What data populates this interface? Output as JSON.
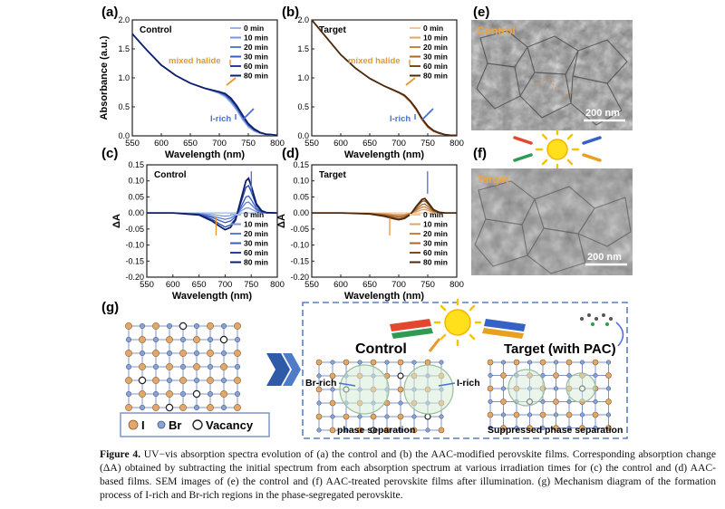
{
  "panel_letters": {
    "a": "(a)",
    "b": "(b)",
    "c": "(c)",
    "d": "(d)",
    "e": "(e)",
    "f": "(f)",
    "g": "(g)"
  },
  "colors": {
    "control_series": [
      "#9ab4e6",
      "#7b98dd",
      "#5b7ccf",
      "#3b5bc0",
      "#23409f",
      "#0d1f6e"
    ],
    "target_series": [
      "#f1c79b",
      "#e0a46b",
      "#c98445",
      "#a9682e",
      "#82491a",
      "#4d2a0d"
    ],
    "accent_orange": "#e8972b",
    "accent_blue": "#4a6fd8",
    "lattice_I": "#e2a76a",
    "lattice_Br": "#8aa3cf",
    "dashed_box": "#5d7fc0"
  },
  "chart_data": [
    {
      "id": "a",
      "type": "line",
      "inner_label": "Control",
      "xlabel": "Wavelength (nm)",
      "ylabel": "Absorbance (a.u.)",
      "xlim": [
        550,
        800
      ],
      "ylim": [
        0,
        2.0
      ],
      "xticks": [
        "550",
        "600",
        "650",
        "700",
        "750",
        "800"
      ],
      "yticks": [
        "0.0",
        "0.5",
        "1.0",
        "1.5",
        "2.0"
      ],
      "legend": [
        "0 min",
        "10 min",
        "20 min",
        "30 min",
        "60 min",
        "80 min"
      ],
      "annotations": {
        "mixed": "mixed halide",
        "irich": "I-rich"
      },
      "x": [
        550,
        575,
        600,
        625,
        650,
        675,
        700,
        710,
        720,
        730,
        740,
        750,
        760,
        770,
        780,
        790,
        800
      ],
      "series": [
        {
          "name": "0 min",
          "values": [
            1.76,
            1.48,
            1.22,
            1.04,
            0.91,
            0.82,
            0.73,
            0.67,
            0.57,
            0.44,
            0.28,
            0.15,
            0.08,
            0.04,
            0.02,
            0.01,
            0.01
          ]
        },
        {
          "name": "10 min",
          "values": [
            1.76,
            1.48,
            1.22,
            1.04,
            0.91,
            0.82,
            0.74,
            0.69,
            0.59,
            0.46,
            0.3,
            0.17,
            0.09,
            0.05,
            0.03,
            0.02,
            0.01
          ]
        },
        {
          "name": "20 min",
          "values": [
            1.76,
            1.48,
            1.22,
            1.04,
            0.91,
            0.82,
            0.75,
            0.7,
            0.61,
            0.48,
            0.32,
            0.18,
            0.1,
            0.05,
            0.03,
            0.02,
            0.01
          ]
        },
        {
          "name": "30 min",
          "values": [
            1.76,
            1.48,
            1.22,
            1.04,
            0.91,
            0.82,
            0.75,
            0.71,
            0.62,
            0.49,
            0.33,
            0.19,
            0.1,
            0.06,
            0.03,
            0.02,
            0.01
          ]
        },
        {
          "name": "60 min",
          "values": [
            1.76,
            1.48,
            1.22,
            1.04,
            0.91,
            0.82,
            0.76,
            0.72,
            0.64,
            0.51,
            0.35,
            0.2,
            0.11,
            0.06,
            0.03,
            0.02,
            0.01
          ]
        },
        {
          "name": "80 min",
          "values": [
            1.76,
            1.48,
            1.22,
            1.04,
            0.91,
            0.82,
            0.76,
            0.73,
            0.65,
            0.52,
            0.36,
            0.21,
            0.12,
            0.06,
            0.03,
            0.02,
            0.01
          ]
        }
      ]
    },
    {
      "id": "b",
      "type": "line",
      "inner_label": "Target",
      "xlabel": "Wavelength (nm)",
      "ylabel": "",
      "xlim": [
        550,
        800
      ],
      "ylim": [
        0,
        2.0
      ],
      "xticks": [
        "550",
        "600",
        "650",
        "700",
        "750",
        "800"
      ],
      "yticks": [
        "0.0",
        "0.5",
        "1.0",
        "1.5",
        "2.0"
      ],
      "legend": [
        "0 min",
        "10 min",
        "20 min",
        "30 min",
        "60 min",
        "80 min"
      ],
      "annotations": {
        "mixed": "mixed halide",
        "irich": "I-rich"
      },
      "x": [
        550,
        575,
        600,
        625,
        650,
        675,
        700,
        710,
        720,
        730,
        740,
        750,
        760,
        770,
        780,
        790,
        800
      ],
      "series": [
        {
          "name": "0 min",
          "values": [
            2.0,
            1.7,
            1.4,
            1.17,
            0.99,
            0.86,
            0.74,
            0.68,
            0.58,
            0.44,
            0.27,
            0.14,
            0.07,
            0.04,
            0.02,
            0.01,
            0.01
          ]
        },
        {
          "name": "10 min",
          "values": [
            2.0,
            1.7,
            1.4,
            1.17,
            0.99,
            0.86,
            0.74,
            0.68,
            0.58,
            0.45,
            0.28,
            0.15,
            0.08,
            0.04,
            0.02,
            0.01,
            0.01
          ]
        },
        {
          "name": "20 min",
          "values": [
            2.0,
            1.7,
            1.4,
            1.17,
            0.99,
            0.86,
            0.74,
            0.69,
            0.59,
            0.45,
            0.28,
            0.15,
            0.08,
            0.04,
            0.02,
            0.01,
            0.01
          ]
        },
        {
          "name": "30 min",
          "values": [
            2.0,
            1.7,
            1.4,
            1.17,
            0.99,
            0.86,
            0.75,
            0.69,
            0.59,
            0.46,
            0.29,
            0.16,
            0.08,
            0.04,
            0.02,
            0.01,
            0.01
          ]
        },
        {
          "name": "60 min",
          "values": [
            2.0,
            1.7,
            1.4,
            1.17,
            0.99,
            0.86,
            0.75,
            0.69,
            0.6,
            0.46,
            0.29,
            0.16,
            0.09,
            0.04,
            0.02,
            0.01,
            0.01
          ]
        },
        {
          "name": "80 min",
          "values": [
            2.0,
            1.7,
            1.4,
            1.17,
            0.99,
            0.86,
            0.75,
            0.7,
            0.6,
            0.47,
            0.3,
            0.17,
            0.09,
            0.05,
            0.02,
            0.01,
            0.01
          ]
        }
      ]
    },
    {
      "id": "c",
      "type": "line",
      "inner_label": "Control",
      "xlabel": "Wavelength (nm)",
      "ylabel": "ΔA",
      "xlim": [
        550,
        800
      ],
      "ylim": [
        -0.2,
        0.15
      ],
      "xticks": [
        "550",
        "600",
        "650",
        "700",
        "750",
        "800"
      ],
      "yticks": [
        "-0.20",
        "-0.15",
        "-0.10",
        "-0.05",
        "0.00",
        "0.05",
        "0.10",
        "0.15"
      ],
      "legend": [
        "0 min",
        "10 min",
        "20 min",
        "30 min",
        "60 min",
        "80 min"
      ],
      "x": [
        550,
        600,
        650,
        675,
        690,
        700,
        710,
        720,
        730,
        740,
        745,
        750,
        760,
        770,
        780,
        800
      ],
      "series": [
        {
          "name": "0 min",
          "values": [
            0,
            0,
            0,
            0,
            0,
            0,
            0,
            0,
            0,
            0,
            0,
            0,
            0,
            0,
            0,
            0
          ]
        },
        {
          "name": "10 min",
          "values": [
            0,
            0,
            -0.002,
            -0.005,
            -0.008,
            -0.01,
            -0.008,
            -0.004,
            0.006,
            0.015,
            0.016,
            0.012,
            0.004,
            0.001,
            0,
            0
          ]
        },
        {
          "name": "20 min",
          "values": [
            0,
            0,
            -0.003,
            -0.01,
            -0.016,
            -0.02,
            -0.016,
            -0.008,
            0.012,
            0.032,
            0.034,
            0.026,
            0.009,
            0.002,
            0,
            0
          ]
        },
        {
          "name": "30 min",
          "values": [
            0,
            0,
            -0.004,
            -0.014,
            -0.024,
            -0.03,
            -0.025,
            -0.012,
            0.018,
            0.05,
            0.053,
            0.042,
            0.014,
            0.003,
            0.001,
            0
          ]
        },
        {
          "name": "60 min",
          "values": [
            0,
            0,
            -0.005,
            -0.02,
            -0.035,
            -0.044,
            -0.037,
            -0.018,
            0.03,
            0.08,
            0.085,
            0.066,
            0.022,
            0.005,
            0.001,
            0
          ]
        },
        {
          "name": "80 min",
          "values": [
            0,
            0,
            -0.006,
            -0.025,
            -0.042,
            -0.052,
            -0.045,
            -0.022,
            0.04,
            0.1,
            0.108,
            0.084,
            0.028,
            0.007,
            0.001,
            0
          ]
        }
      ]
    },
    {
      "id": "d",
      "type": "line",
      "inner_label": "Target",
      "xlabel": "Wavelength (nm)",
      "ylabel": "ΔA",
      "xlim": [
        550,
        800
      ],
      "ylim": [
        -0.2,
        0.15
      ],
      "xticks": [
        "550",
        "600",
        "650",
        "700",
        "750",
        "800"
      ],
      "yticks": [
        "-0.20",
        "-0.15",
        "-0.10",
        "-0.05",
        "0.00",
        "0.05",
        "0.10",
        "0.15"
      ],
      "legend": [
        "0 min",
        "10 min",
        "20 min",
        "30 min",
        "60 min",
        "80 min"
      ],
      "x": [
        550,
        600,
        650,
        675,
        690,
        700,
        710,
        720,
        730,
        740,
        745,
        750,
        760,
        770,
        780,
        800
      ],
      "series": [
        {
          "name": "0 min",
          "values": [
            0,
            0,
            0,
            0,
            0,
            0,
            0,
            0,
            0,
            0,
            0,
            0,
            0,
            0,
            0,
            0
          ]
        },
        {
          "name": "10 min",
          "values": [
            0,
            0,
            -0.001,
            -0.002,
            -0.004,
            -0.005,
            -0.004,
            -0.001,
            0.004,
            0.01,
            0.011,
            0.008,
            0.002,
            0,
            0,
            0
          ]
        },
        {
          "name": "20 min",
          "values": [
            0,
            0,
            -0.001,
            -0.004,
            -0.007,
            -0.009,
            -0.007,
            -0.002,
            0.008,
            0.018,
            0.019,
            0.014,
            0.004,
            0.001,
            0,
            0
          ]
        },
        {
          "name": "30 min",
          "values": [
            0,
            0,
            -0.002,
            -0.006,
            -0.01,
            -0.013,
            -0.01,
            -0.003,
            0.012,
            0.026,
            0.028,
            0.021,
            0.006,
            0.001,
            0,
            0
          ]
        },
        {
          "name": "60 min",
          "values": [
            0,
            0,
            -0.002,
            -0.008,
            -0.014,
            -0.018,
            -0.014,
            -0.004,
            0.017,
            0.036,
            0.038,
            0.029,
            0.008,
            0.002,
            0,
            0
          ]
        },
        {
          "name": "80 min",
          "values": [
            0,
            0,
            -0.003,
            -0.01,
            -0.017,
            -0.021,
            -0.017,
            -0.005,
            0.02,
            0.042,
            0.045,
            0.034,
            0.01,
            0.002,
            0,
            0
          ]
        }
      ]
    }
  ],
  "sem": {
    "e": {
      "label": "Control",
      "scale": "200 nm"
    },
    "f": {
      "label": "Target",
      "scale": "200 nm"
    }
  },
  "diagram_g": {
    "legend": {
      "I": "I",
      "Br": "Br",
      "vacancy": "Vacancy"
    },
    "control_title": "Control",
    "target_title": "Target (with PAC)",
    "br_rich": "Br-rich",
    "i_rich": "I-rich",
    "phase_sep": "phase separation",
    "suppressed": "Suppressed phase separation"
  },
  "caption": {
    "fig_label": "Figure 4.",
    "text": "UV−vis absorption spectra evolution of (a) the control and (b) the AAC-modified perovskite films. Corresponding absorption change (ΔA) obtained by subtracting the initial spectrum from each absorption spectrum at various irradiation times for (c) the control and (d) AAC-based films. SEM images of (e) the control and (f) AAC-treated perovskite films after illumination. (g) Mechanism diagram of the formation process of I-rich and Br-rich regions in the phase-segregated perovskite."
  }
}
